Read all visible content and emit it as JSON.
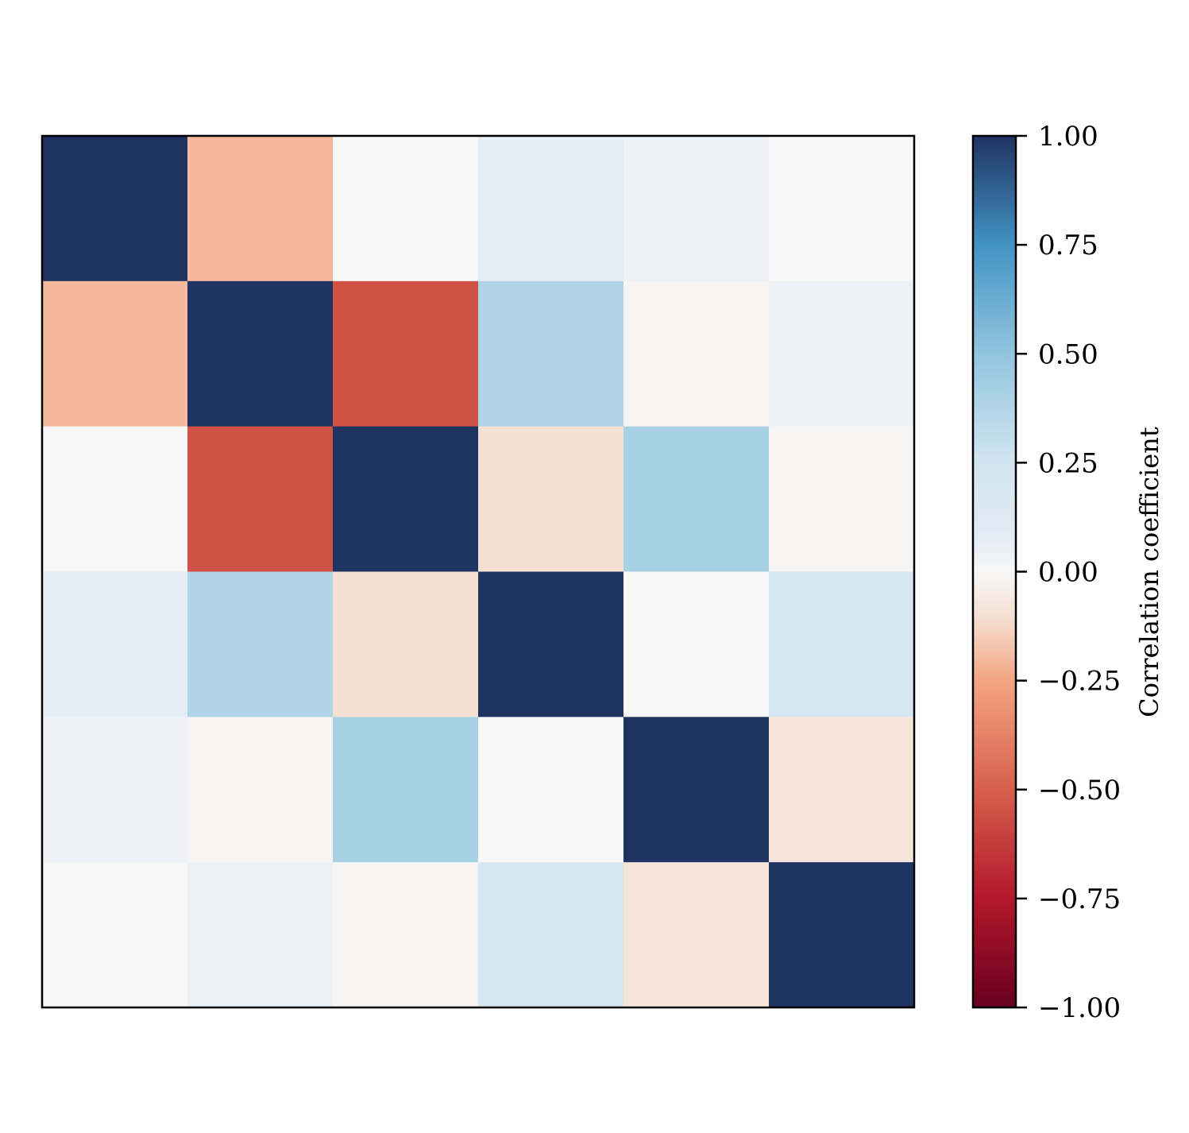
{
  "chart_data": {
    "type": "heatmap",
    "title": "",
    "xlabel": "",
    "ylabel": "",
    "matrix": [
      [
        1.0,
        -0.2,
        0.0,
        0.08,
        0.04,
        0.0
      ],
      [
        -0.2,
        1.0,
        -0.55,
        0.38,
        -0.01,
        0.05
      ],
      [
        0.0,
        -0.55,
        1.0,
        -0.1,
        0.41,
        -0.01
      ],
      [
        0.08,
        0.38,
        -0.1,
        1.0,
        0.0,
        0.2
      ],
      [
        0.04,
        -0.01,
        0.41,
        0.0,
        1.0,
        -0.08
      ],
      [
        0.0,
        0.05,
        -0.01,
        0.2,
        -0.08,
        1.0
      ]
    ],
    "colormap": "RdBu",
    "vmin": -1.0,
    "vmax": 1.0,
    "colorbar": {
      "label": "Correlation coefficient",
      "ticks": [
        1.0,
        0.75,
        0.5,
        0.25,
        0.0,
        -0.25,
        -0.5,
        -0.75,
        -1.0
      ],
      "tick_labels": [
        "1.00",
        "0.75",
        "0.50",
        "0.25",
        "0.00",
        "−0.25",
        "−0.50",
        "−0.75",
        "−1.00"
      ]
    },
    "axis_ticks_shown": false,
    "colors": {
      "strong_positive": "#1f3361",
      "zero": "#f5f5f5",
      "strong_negative": "#67001f"
    }
  }
}
